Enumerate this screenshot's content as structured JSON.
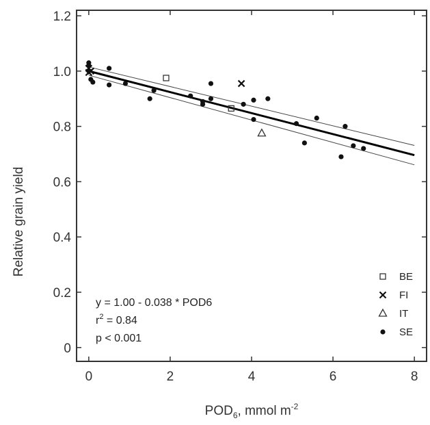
{
  "chart_data": {
    "type": "scatter",
    "xlabel_main": "POD",
    "xlabel_sub": "6",
    "xlabel_tail": ", mmol m",
    "xlabel_sup": "-2",
    "ylabel": "Relative grain yield",
    "xlim": [
      -0.3,
      8.3
    ],
    "ylim": [
      -0.05,
      1.22
    ],
    "xticks": [
      0,
      2,
      4,
      6,
      8
    ],
    "yticks": [
      0,
      0.2,
      0.4,
      0.6,
      0.8,
      1.0,
      1.2
    ],
    "xtick_labels": [
      "0",
      "2",
      "4",
      "6",
      "8"
    ],
    "ytick_labels": [
      "0",
      "0.2",
      "0.4",
      "0.6",
      "0.8",
      "1.0",
      "1.2"
    ],
    "regression": {
      "intercept": 1.0,
      "slope": -0.038,
      "ci_half_width_at_0": 0.015,
      "ci_half_width_at_8": 0.035
    },
    "annotation": {
      "equation": "y = 1.00 - 0.038 * POD6",
      "r2_main": "r",
      "r2_sup": "2",
      "r2_tail": " = 0.84",
      "pvalue": "p < 0.001"
    },
    "legend": [
      {
        "name": "BE",
        "marker": "square-open"
      },
      {
        "name": "FI",
        "marker": "x-cross"
      },
      {
        "name": "IT",
        "marker": "triangle-open"
      },
      {
        "name": "SE",
        "marker": "circle-filled"
      }
    ],
    "series": [
      {
        "name": "BE",
        "marker": "square-open",
        "points": [
          [
            1.9,
            0.975
          ],
          [
            3.5,
            0.865
          ]
        ]
      },
      {
        "name": "FI",
        "marker": "x-cross",
        "points": [
          [
            0.0,
            1.01
          ],
          [
            0.05,
            1.0
          ],
          [
            0.0,
            0.995
          ],
          [
            3.75,
            0.955
          ]
        ]
      },
      {
        "name": "IT",
        "marker": "triangle-open",
        "points": [
          [
            4.25,
            0.775
          ]
        ]
      },
      {
        "name": "SE",
        "marker": "circle-filled",
        "points": [
          [
            0.0,
            1.03
          ],
          [
            0.0,
            1.02
          ],
          [
            0.0,
            1.0
          ],
          [
            0.05,
            0.97
          ],
          [
            0.1,
            0.96
          ],
          [
            0.5,
            1.01
          ],
          [
            0.5,
            0.95
          ],
          [
            0.9,
            0.955
          ],
          [
            1.5,
            0.9
          ],
          [
            1.6,
            0.93
          ],
          [
            2.5,
            0.91
          ],
          [
            2.8,
            0.88
          ],
          [
            2.8,
            0.89
          ],
          [
            3.0,
            0.955
          ],
          [
            3.0,
            0.9
          ],
          [
            3.8,
            0.88
          ],
          [
            4.05,
            0.825
          ],
          [
            4.05,
            0.895
          ],
          [
            4.4,
            0.9
          ],
          [
            5.1,
            0.81
          ],
          [
            5.3,
            0.74
          ],
          [
            5.6,
            0.83
          ],
          [
            6.2,
            0.69
          ],
          [
            6.3,
            0.8
          ],
          [
            6.5,
            0.73
          ],
          [
            6.75,
            0.72
          ]
        ]
      }
    ]
  }
}
